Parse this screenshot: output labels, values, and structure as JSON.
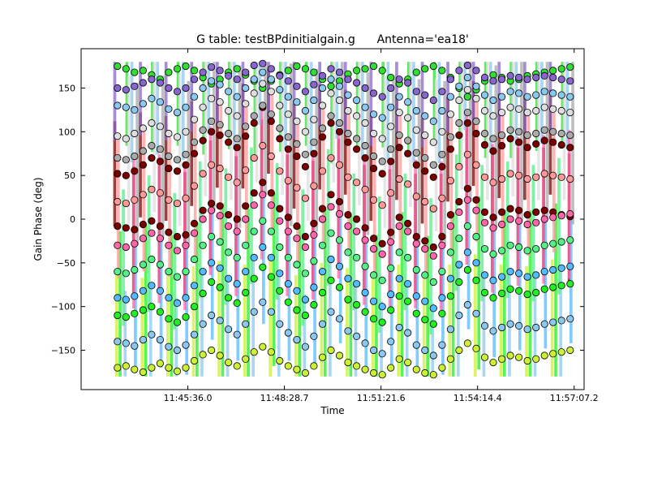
{
  "chart_data": {
    "type": "scatter",
    "title": "G table: testBPdinitialgain.g      Antenna='ea18'",
    "xlabel": "Time",
    "ylabel": "Gain Phase (deg)",
    "x_range": [
      "11:42:25",
      "11:57:25"
    ],
    "ylim": [
      -195,
      195
    ],
    "x_ticks": [
      "11:45:36.0",
      "11:48:28.7",
      "11:51:21.6",
      "11:54:14.4",
      "11:57:07.2"
    ],
    "y_ticks": [
      -150,
      -100,
      -50,
      0,
      50,
      100,
      150
    ],
    "time_start": "11:43:30",
    "time_end": "11:57:00",
    "grid": false,
    "legend": "none",
    "marker": "circle",
    "series": [
      {
        "color": "#7b0000",
        "values": [
          52,
          50,
          55,
          62,
          70,
          66,
          58,
          55,
          62,
          75,
          90,
          100,
          96,
          88,
          82,
          95,
          110,
          128,
          112,
          92,
          80,
          72,
          60,
          75,
          94,
          110,
          100,
          88,
          80,
          70,
          58,
          52,
          66,
          82,
          75,
          62,
          55,
          48,
          60,
          80,
          96,
          110,
          98,
          85,
          78,
          84,
          92,
          88,
          82,
          86,
          90,
          88,
          85,
          82
        ]
      },
      {
        "color": "#7b0000",
        "values": [
          -8,
          -10,
          -12,
          -6,
          -2,
          -8,
          -15,
          -20,
          -18,
          -5,
          10,
          18,
          15,
          5,
          0,
          15,
          30,
          42,
          30,
          12,
          2,
          -8,
          -20,
          -5,
          12,
          28,
          20,
          5,
          0,
          -10,
          -22,
          -28,
          -15,
          2,
          -5,
          -20,
          -25,
          -32,
          -20,
          5,
          20,
          35,
          22,
          8,
          2,
          8,
          12,
          10,
          5,
          8,
          10,
          8,
          5,
          3
        ]
      },
      {
        "color": "#33dd33",
        "values": [
          175,
          172,
          168,
          170,
          165,
          160,
          168,
          172,
          175,
          170,
          162,
          155,
          160,
          168,
          172,
          165,
          158,
          150,
          158,
          165,
          170,
          175,
          172,
          168,
          160,
          152,
          158,
          166,
          170,
          172,
          175,
          170,
          162,
          155,
          160,
          168,
          172,
          175,
          170,
          162,
          150,
          140,
          148,
          158,
          165,
          162,
          158,
          160,
          164,
          166,
          168,
          170,
          172,
          174
        ]
      },
      {
        "color": "#22ee22",
        "values": [
          -110,
          -112,
          -108,
          -104,
          -100,
          -106,
          -114,
          -118,
          -112,
          -100,
          -85,
          -72,
          -78,
          -90,
          -96,
          -84,
          -68,
          -55,
          -66,
          -82,
          -95,
          -104,
          -110,
          -98,
          -84,
          -70,
          -78,
          -92,
          -98,
          -106,
          -114,
          -118,
          -104,
          -88,
          -94,
          -108,
          -115,
          -120,
          -108,
          -88,
          -72,
          -58,
          -70,
          -84,
          -90,
          -85,
          -80,
          -82,
          -86,
          -84,
          -80,
          -78,
          -76,
          -74
        ]
      },
      {
        "color": "#8cc8ee",
        "values": [
          130,
          128,
          125,
          132,
          138,
          134,
          126,
          122,
          128,
          140,
          150,
          158,
          154,
          146,
          140,
          150,
          160,
          168,
          160,
          148,
          140,
          134,
          124,
          136,
          150,
          160,
          152,
          142,
          136,
          128,
          120,
          116,
          128,
          140,
          134,
          124,
          118,
          112,
          124,
          140,
          152,
          162,
          152,
          142,
          136,
          140,
          146,
          144,
          140,
          142,
          146,
          144,
          142,
          140
        ]
      },
      {
        "color": "#8cc8ee",
        "values": [
          -140,
          -142,
          -145,
          -138,
          -132,
          -138,
          -146,
          -150,
          -144,
          -132,
          -120,
          -110,
          -116,
          -126,
          -132,
          -120,
          -106,
          -95,
          -106,
          -120,
          -130,
          -138,
          -146,
          -134,
          -120,
          -106,
          -114,
          -128,
          -134,
          -142,
          -150,
          -154,
          -140,
          -124,
          -130,
          -144,
          -150,
          -156,
          -144,
          -126,
          -110,
          -98,
          -108,
          -122,
          -128,
          -124,
          -120,
          -122,
          -126,
          -124,
          -120,
          -118,
          -116,
          -114
        ]
      },
      {
        "color": "#ff9999",
        "values": [
          20,
          18,
          22,
          28,
          34,
          30,
          22,
          18,
          24,
          38,
          52,
          62,
          58,
          48,
          42,
          56,
          70,
          84,
          72,
          55,
          44,
          36,
          24,
          38,
          55,
          70,
          62,
          48,
          42,
          34,
          22,
          16,
          30,
          46,
          40,
          26,
          20,
          12,
          24,
          44,
          60,
          74,
          62,
          48,
          42,
          46,
          52,
          50,
          46,
          48,
          52,
          50,
          48,
          46
        ]
      },
      {
        "color": "#aaaaaa",
        "values": [
          70,
          68,
          72,
          78,
          84,
          80,
          72,
          68,
          74,
          88,
          102,
          112,
          108,
          98,
          92,
          106,
          118,
          130,
          120,
          104,
          94,
          86,
          74,
          88,
          104,
          118,
          110,
          98,
          92,
          84,
          72,
          66,
          80,
          96,
          90,
          76,
          70,
          62,
          74,
          94,
          110,
          122,
          112,
          98,
          92,
          96,
          102,
          100,
          96,
          98,
          102,
          100,
          98,
          96
        ]
      },
      {
        "color": "#55ee88",
        "values": [
          -60,
          -62,
          -58,
          -52,
          -46,
          -52,
          -60,
          -66,
          -60,
          -46,
          -30,
          -20,
          -26,
          -38,
          -44,
          -30,
          -14,
          -2,
          -14,
          -32,
          -44,
          -52,
          -62,
          -48,
          -30,
          -16,
          -24,
          -38,
          -44,
          -54,
          -64,
          -70,
          -56,
          -38,
          -44,
          -58,
          -64,
          -72,
          -60,
          -38,
          -22,
          -8,
          -20,
          -34,
          -40,
          -36,
          -30,
          -32,
          -36,
          -34,
          -30,
          -28,
          -26,
          -24
        ]
      },
      {
        "color": "#ccf033",
        "values": [
          -170,
          -168,
          -172,
          -175,
          -170,
          -165,
          -170,
          -174,
          -170,
          -162,
          -155,
          -150,
          -156,
          -164,
          -168,
          -160,
          -152,
          -146,
          -152,
          -162,
          -168,
          -172,
          -176,
          -168,
          -158,
          -150,
          -156,
          -164,
          -168,
          -172,
          -176,
          -178,
          -170,
          -160,
          -164,
          -172,
          -176,
          -178,
          -170,
          -160,
          -150,
          -142,
          -148,
          -158,
          -164,
          -160,
          -156,
          -158,
          -162,
          -160,
          -156,
          -154,
          -152,
          -150
        ]
      },
      {
        "color": "#55bbff",
        "values": [
          -90,
          -92,
          -88,
          -82,
          -76,
          -82,
          -90,
          -96,
          -90,
          -76,
          -60,
          -50,
          -56,
          -68,
          -74,
          -60,
          -44,
          -32,
          -44,
          -62,
          -74,
          -82,
          -92,
          -78,
          -60,
          -46,
          -54,
          -68,
          -74,
          -84,
          -94,
          -100,
          -86,
          -68,
          -74,
          -88,
          -94,
          -102,
          -90,
          -68,
          -52,
          -38,
          -50,
          -64,
          -70,
          -66,
          -60,
          -62,
          -66,
          -64,
          -60,
          -58,
          -56,
          -54
        ]
      },
      {
        "color": "#dddddd",
        "values": [
          95,
          92,
          98,
          104,
          110,
          106,
          98,
          94,
          100,
          114,
          128,
          138,
          134,
          124,
          118,
          132,
          144,
          155,
          146,
          130,
          120,
          112,
          100,
          114,
          130,
          144,
          136,
          124,
          118,
          110,
          98,
          92,
          106,
          122,
          116,
          102,
          96,
          88,
          100,
          120,
          136,
          148,
          138,
          124,
          118,
          122,
          128,
          126,
          122,
          124,
          128,
          126,
          124,
          122
        ]
      },
      {
        "color": "#8866cc",
        "values": [
          150,
          148,
          152,
          156,
          160,
          156,
          150,
          146,
          150,
          160,
          168,
          174,
          170,
          164,
          160,
          168,
          176,
          178,
          172,
          164,
          158,
          152,
          146,
          154,
          164,
          172,
          168,
          160,
          156,
          150,
          144,
          140,
          150,
          160,
          156,
          146,
          142,
          136,
          146,
          160,
          170,
          176,
          170,
          162,
          158,
          160,
          164,
          162,
          160,
          162,
          164,
          162,
          160,
          158
        ]
      },
      {
        "color": "#ff66aa",
        "values": [
          -30,
          -32,
          -28,
          -22,
          -16,
          -22,
          -30,
          -36,
          -30,
          -16,
          0,
          10,
          4,
          -8,
          -14,
          0,
          16,
          28,
          16,
          -2,
          -14,
          -22,
          -32,
          -18,
          0,
          14,
          6,
          -8,
          -14,
          -24,
          -34,
          -40,
          -26,
          -8,
          -14,
          -28,
          -34,
          -42,
          -30,
          -8,
          8,
          22,
          10,
          -4,
          -10,
          -6,
          0,
          -2,
          -6,
          -4,
          0,
          2,
          4,
          6
        ]
      }
    ]
  }
}
